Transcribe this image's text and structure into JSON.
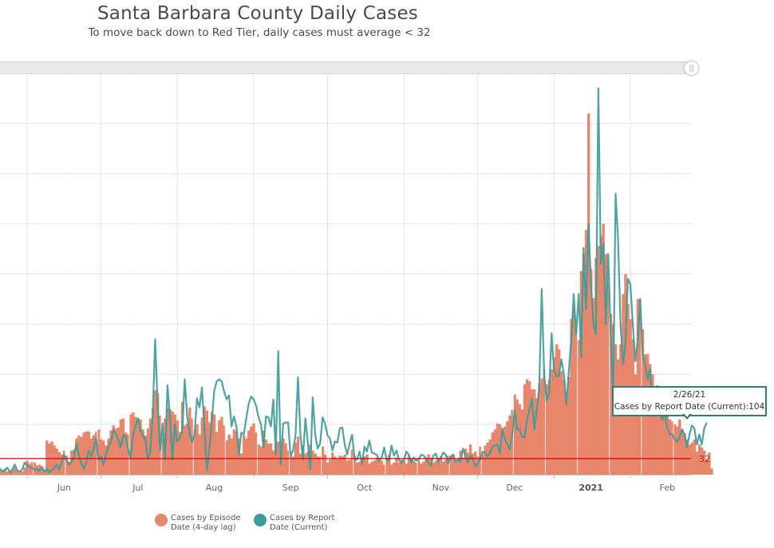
{
  "header": {
    "title": "Santa Barbara County Daily Cases",
    "subtitle": "To move back down to Red Tier, daily cases must average < 32"
  },
  "scrollbar": {
    "handle_glyph": "||"
  },
  "tooltip": {
    "date": "2/26/21",
    "text": "Cases by Report Date (Current):104"
  },
  "legend": {
    "items": [
      {
        "label": "Cases by Episode Date (4-day lag)",
        "color": "#E8866C"
      },
      {
        "label": "Cases by Report Date (Current)",
        "color": "#3E9C9A"
      }
    ]
  },
  "chart_data": {
    "type": "bar+line",
    "title": "Santa Barbara County Daily Cases",
    "subtitle": "To move back down to Red Tier, daily cases must average < 32",
    "xlabel": "",
    "ylabel": "",
    "start_date": "2020-05-21",
    "end_date": "2021-02-26",
    "ylim": [
      0,
      800
    ],
    "y_gridlines": [
      100,
      200,
      300,
      400,
      500,
      600,
      700
    ],
    "grid": true,
    "x_tick_labels": [
      {
        "label": "Jun",
        "date": "2020-06-16"
      },
      {
        "label": "Jul",
        "date": "2020-07-16"
      },
      {
        "label": "Aug",
        "date": "2020-08-16"
      },
      {
        "label": "Sep",
        "date": "2020-09-16"
      },
      {
        "label": "Oct",
        "date": "2020-10-16"
      },
      {
        "label": "Nov",
        "date": "2020-11-16"
      },
      {
        "label": "Dec",
        "date": "2020-12-16"
      },
      {
        "label": "2021",
        "date": "2021-01-16",
        "bold": true
      },
      {
        "label": "Feb",
        "date": "2021-02-16"
      }
    ],
    "x_gridline_dates": [
      "2020-06-01",
      "2020-07-01",
      "2020-08-01",
      "2020-09-01",
      "2020-10-01",
      "2020-11-01",
      "2020-12-01",
      "2021-01-01",
      "2021-02-01"
    ],
    "reference_line": {
      "value": 32,
      "label": "32",
      "color": "#D40000"
    },
    "legend_position": "bottom",
    "series": [
      {
        "name": "Cases by Episode Date (4-day lag)",
        "type": "bar",
        "color": "#E8866C",
        "values": [
          10,
          8,
          12,
          6,
          8,
          10,
          14,
          9,
          7,
          6,
          14,
          28,
          22,
          25,
          24,
          18,
          20,
          17,
          10,
          68,
          62,
          66,
          58,
          52,
          45,
          40,
          48,
          38,
          26,
          48,
          50,
          72,
          78,
          75,
          84,
          86,
          86,
          72,
          78,
          85,
          90,
          70,
          68,
          58,
          72,
          88,
          98,
          92,
          94,
          110,
          112,
          84,
          80,
          120,
          124,
          115,
          112,
          110,
          90,
          78,
          92,
          112,
          132,
          168,
          162,
          118,
          74,
          112,
          134,
          130,
          126,
          120,
          108,
          85,
          145,
          98,
          102,
          134,
          112,
          90,
          100,
          80,
          114,
          136,
          128,
          104,
          125,
          120,
          85,
          108,
          115,
          98,
          68,
          80,
          72,
          90,
          86,
          72,
          42,
          78,
          72,
          88,
          96,
          102,
          84,
          60,
          56,
          88,
          70,
          62,
          62,
          48,
          62,
          66,
          40,
          72,
          62,
          48,
          36,
          36,
          64,
          76,
          42,
          58,
          42,
          46,
          60,
          48,
          42,
          36,
          36,
          56,
          40,
          24,
          30,
          44,
          36,
          32,
          38,
          36,
          40,
          28,
          30,
          50,
          38,
          24,
          26,
          30,
          36,
          40,
          22,
          26,
          28,
          34,
          30,
          28,
          20,
          34,
          40,
          20,
          24,
          34,
          24,
          30,
          28,
          22,
          38,
          30,
          28,
          24,
          28,
          22,
          26,
          30,
          40,
          34,
          24,
          28,
          30,
          36,
          26,
          30,
          38,
          38,
          40,
          28,
          30,
          48,
          34,
          52,
          44,
          60,
          42,
          46,
          36,
          56,
          40,
          58,
          64,
          70,
          84,
          90,
          102,
          100,
          88,
          96,
          106,
          118,
          130,
          160,
          150,
          140,
          130,
          180,
          190,
          186,
          170,
          170,
          152,
          182,
          192,
          210,
          180,
          190,
          210,
          234,
          260,
          250,
          206,
          190,
          150,
          194,
          310,
          330,
          296,
          268,
          406,
          440,
          488,
          720,
          410,
          352,
          432,
          456,
          476,
          500,
          440,
          380,
          320,
          300,
          260,
          230,
          260,
          360,
          400,
          340,
          310,
          270,
          200,
          350,
          350,
          290,
          240,
          240,
          220,
          200,
          160,
          178,
          160,
          150,
          140,
          120,
          110,
          106,
          100,
          96,
          110,
          90,
          82,
          70,
          60,
          64,
          70,
          46,
          60,
          54,
          48,
          30,
          44,
          12
        ]
      },
      {
        "name": "Cases by Report Date (Current)",
        "type": "line",
        "color": "#3E9C9A",
        "values": [
          12,
          6,
          10,
          14,
          4,
          10,
          20,
          8,
          6,
          10,
          24,
          18,
          14,
          14,
          10,
          10,
          8,
          14,
          6,
          12,
          4,
          10,
          12,
          20,
          10,
          24,
          40,
          28,
          20,
          24,
          36,
          62,
          40,
          22,
          12,
          24,
          48,
          36,
          52,
          72,
          28,
          36,
          20,
          40,
          56,
          64,
          88,
          82,
          70,
          54,
          78,
          76,
          52,
          32,
          80,
          96,
          112,
          88,
          78,
          70,
          32,
          44,
          118,
          270,
          140,
          48,
          102,
          30,
          178,
          114,
          30,
          100,
          66,
          74,
          86,
          190,
          116,
          82,
          64,
          80,
          152,
          134,
          174,
          92,
          8,
          50,
          104,
          168,
          186,
          190,
          186,
          166,
          150,
          158,
          96,
          116,
          96,
          40,
          84,
          80,
          112,
          142,
          156,
          150,
          138,
          114,
          100,
          54,
          116,
          114,
          96,
          150,
          40,
          246,
          20,
          102,
          104,
          104,
          36,
          48,
          78,
          194,
          80,
          30,
          112,
          64,
          10,
          154,
          80,
          52,
          62,
          114,
          102,
          78,
          72,
          48,
          66,
          64,
          92,
          94,
          60,
          40,
          62,
          80,
          30,
          30,
          46,
          20,
          56,
          46,
          68,
          44,
          42,
          40,
          28,
          34,
          54,
          30,
          28,
          58,
          38,
          48,
          30,
          22,
          28,
          46,
          40,
          24,
          34,
          28,
          30,
          40,
          38,
          32,
          22,
          18,
          38,
          42,
          26,
          34,
          44,
          40,
          22,
          36,
          40,
          26,
          30,
          26,
          52,
          36,
          24,
          38,
          32,
          16,
          22,
          30,
          46,
          42,
          36,
          44,
          56,
          58,
          60,
          42,
          92,
          70,
          62,
          50,
          80,
          128,
          90,
          90,
          76,
          74,
          108,
          130,
          152,
          90,
          130,
          174,
          370,
          200,
          146,
          164,
          282,
          208,
          196,
          198,
          230,
          200,
          140,
          206,
          270,
          360,
          280,
          360,
          234,
          452,
          330,
          500,
          380,
          300,
          280,
          770,
          420,
          460,
          300,
          440,
          284,
          150,
          560,
          470,
          300,
          220,
          260,
          390,
          380,
          300,
          226,
          268,
          350,
          240,
          220,
          190,
          210,
          130,
          140,
          150,
          120,
          110,
          124,
          94,
          80,
          80,
          70,
          66,
          74,
          90,
          80,
          54,
          80,
          98,
          92,
          60,
          80,
          60,
          92,
          104
        ]
      }
    ]
  }
}
